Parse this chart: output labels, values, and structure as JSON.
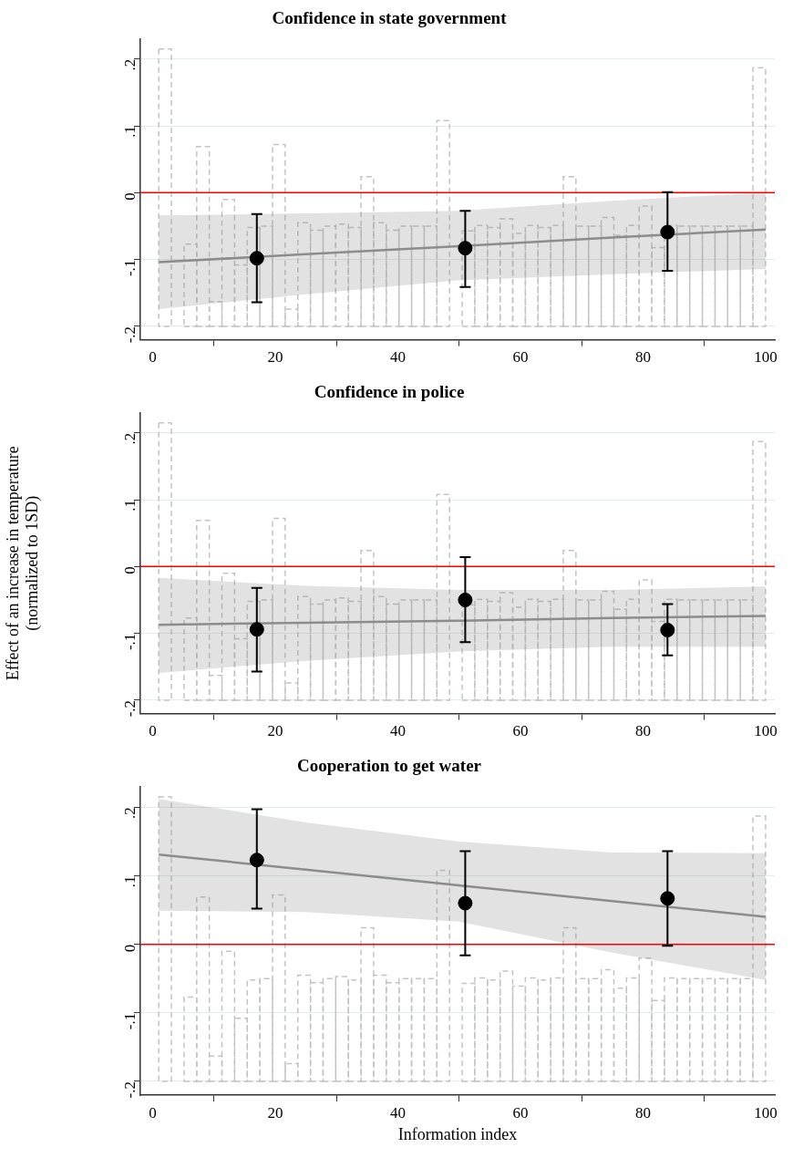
{
  "chart_data": [
    {
      "type": "scatter",
      "title": "Confidence in state government",
      "xlim": [
        -2,
        101.5
      ],
      "ylim": [
        -0.22,
        0.23
      ],
      "xticks": [
        0,
        20,
        40,
        60,
        80,
        100
      ],
      "yticks": [
        {
          "value": -0.2,
          "label": "-.2"
        },
        {
          "value": -0.1,
          "label": "-.1"
        },
        {
          "value": 0,
          "label": "0"
        },
        {
          "value": 0.1,
          "label": ".1"
        },
        {
          "value": 0.2,
          "label": ".2"
        }
      ],
      "grid": "y",
      "ref_lines": [
        {
          "axis": "y",
          "value": 0,
          "color": "#ff0000"
        }
      ],
      "series": [
        {
          "type": "bar",
          "color": "#c4c4c4",
          "line_style": "dashed",
          "x": [
            2.03,
            6.16,
            8.22,
            10.28,
            12.34,
            14.41,
            16.47,
            18.53,
            20.59,
            22.66,
            24.72,
            26.78,
            28.84,
            30.91,
            32.97,
            35.03,
            37.09,
            39.16,
            41.22,
            43.28,
            45.34,
            47.41,
            51.53,
            53.59,
            55.66,
            57.72,
            59.78,
            61.84,
            63.91,
            65.97,
            68.03,
            70.09,
            72.16,
            74.22,
            76.28,
            78.34,
            80.41,
            82.47,
            84.53,
            86.59,
            88.66,
            90.72,
            92.78,
            94.84,
            96.91,
            98.97
          ],
          "base": [
            -0.2,
            -0.2,
            -0.2,
            -0.2,
            -0.2,
            -0.2,
            -0.2,
            -0.2,
            -0.2,
            -0.2,
            -0.2,
            -0.2,
            -0.2,
            -0.2,
            -0.2,
            -0.2,
            -0.2,
            -0.2,
            -0.2,
            -0.2,
            -0.2,
            -0.2,
            -0.2,
            -0.2,
            -0.2,
            -0.2,
            -0.2,
            -0.2,
            -0.2,
            -0.2,
            -0.2,
            -0.2,
            -0.2,
            -0.2,
            -0.2,
            -0.2,
            -0.2,
            -0.2,
            -0.2,
            -0.2,
            -0.2,
            -0.2,
            -0.2,
            -0.2,
            -0.2,
            -0.2
          ],
          "values": [
            0.415,
            0.123,
            0.269,
            0.037,
            0.19,
            0.092,
            0.148,
            0.15,
            0.272,
            0.026,
            0.155,
            0.144,
            0.15,
            0.153,
            0.148,
            0.224,
            0.155,
            0.144,
            0.15,
            0.15,
            0.15,
            0.308,
            0.143,
            0.151,
            0.148,
            0.161,
            0.139,
            0.151,
            0.148,
            0.151,
            0.224,
            0.15,
            0.15,
            0.163,
            0.136,
            0.151,
            0.18,
            0.118,
            0.151,
            0.15,
            0.15,
            0.15,
            0.15,
            0.15,
            0.15,
            0.387
          ]
        },
        {
          "type": "line",
          "color": "#8c8c8c",
          "marker": "none",
          "x": [
            1,
            25,
            50,
            75,
            100
          ],
          "values": [
            -0.104,
            -0.092,
            -0.08,
            -0.067,
            -0.055
          ],
          "lower": [
            -0.174,
            -0.152,
            -0.131,
            -0.122,
            -0.114
          ],
          "upper": [
            -0.034,
            -0.031,
            -0.027,
            -0.012,
            0.0
          ]
        },
        {
          "color": "#000000",
          "marker": "circle",
          "x": [
            17,
            51,
            84
          ],
          "values": [
            -0.098,
            -0.083,
            -0.059
          ],
          "errors": [
            [
              -0.164,
              -0.032
            ],
            [
              -0.141,
              -0.027
            ],
            [
              -0.117,
              0.001
            ]
          ]
        }
      ]
    },
    {
      "type": "scatter",
      "title": "Confidence in police",
      "ylabel": "Effect of an increase in temperature\n(normalized to 1SD)",
      "xlim": [
        -2,
        101.5
      ],
      "ylim": [
        -0.22,
        0.23
      ],
      "xticks": [
        0,
        20,
        40,
        60,
        80,
        100
      ],
      "yticks": [
        {
          "value": -0.2,
          "label": "-.2"
        },
        {
          "value": -0.1,
          "label": "-.1"
        },
        {
          "value": 0,
          "label": "0"
        },
        {
          "value": 0.1,
          "label": ".1"
        },
        {
          "value": 0.2,
          "label": ".2"
        }
      ],
      "grid": "y",
      "ref_lines": [
        {
          "axis": "y",
          "value": 0,
          "color": "#ff0000"
        }
      ],
      "series": [
        {
          "type": "bar",
          "color": "#c4c4c4",
          "line_style": "dashed",
          "x": [
            2.03,
            6.16,
            8.22,
            10.28,
            12.34,
            14.41,
            16.47,
            18.53,
            20.59,
            22.66,
            24.72,
            26.78,
            28.84,
            30.91,
            32.97,
            35.03,
            37.09,
            39.16,
            41.22,
            43.28,
            45.34,
            47.41,
            51.53,
            53.59,
            55.66,
            57.72,
            59.78,
            61.84,
            63.91,
            65.97,
            68.03,
            70.09,
            72.16,
            74.22,
            76.28,
            78.34,
            80.41,
            82.47,
            84.53,
            86.59,
            88.66,
            90.72,
            92.78,
            94.84,
            96.91,
            98.97
          ],
          "base": [
            -0.2,
            -0.2,
            -0.2,
            -0.2,
            -0.2,
            -0.2,
            -0.2,
            -0.2,
            -0.2,
            -0.2,
            -0.2,
            -0.2,
            -0.2,
            -0.2,
            -0.2,
            -0.2,
            -0.2,
            -0.2,
            -0.2,
            -0.2,
            -0.2,
            -0.2,
            -0.2,
            -0.2,
            -0.2,
            -0.2,
            -0.2,
            -0.2,
            -0.2,
            -0.2,
            -0.2,
            -0.2,
            -0.2,
            -0.2,
            -0.2,
            -0.2,
            -0.2,
            -0.2,
            -0.2,
            -0.2,
            -0.2,
            -0.2,
            -0.2,
            -0.2,
            -0.2,
            -0.2
          ],
          "values": [
            0.415,
            0.123,
            0.269,
            0.037,
            0.19,
            0.092,
            0.148,
            0.15,
            0.272,
            0.026,
            0.155,
            0.144,
            0.15,
            0.153,
            0.148,
            0.224,
            0.155,
            0.144,
            0.15,
            0.15,
            0.15,
            0.308,
            0.143,
            0.151,
            0.148,
            0.161,
            0.139,
            0.151,
            0.148,
            0.151,
            0.224,
            0.15,
            0.15,
            0.163,
            0.136,
            0.151,
            0.18,
            0.118,
            0.151,
            0.15,
            0.15,
            0.15,
            0.15,
            0.15,
            0.15,
            0.387
          ]
        },
        {
          "type": "line",
          "color": "#8c8c8c",
          "marker": "none",
          "x": [
            1,
            25,
            50,
            75,
            100
          ],
          "values": [
            -0.087,
            -0.084,
            -0.081,
            -0.077,
            -0.074
          ],
          "lower": [
            -0.159,
            -0.141,
            -0.127,
            -0.12,
            -0.12
          ],
          "upper": [
            -0.017,
            -0.029,
            -0.035,
            -0.035,
            -0.03
          ]
        },
        {
          "color": "#000000",
          "marker": "circle",
          "x": [
            17,
            51,
            84
          ],
          "values": [
            -0.094,
            -0.05,
            -0.095
          ],
          "errors": [
            [
              -0.157,
              -0.032
            ],
            [
              -0.113,
              0.014
            ],
            [
              -0.133,
              -0.056
            ]
          ]
        }
      ]
    },
    {
      "type": "scatter",
      "title": "Cooperation to get water",
      "xlabel": "Information index",
      "xlim": [
        -2,
        101.5
      ],
      "ylim": [
        -0.22,
        0.23
      ],
      "xticks": [
        0,
        20,
        40,
        60,
        80,
        100
      ],
      "yticks": [
        {
          "value": -0.2,
          "label": "-.2"
        },
        {
          "value": -0.1,
          "label": "-.1"
        },
        {
          "value": 0,
          "label": "0"
        },
        {
          "value": 0.1,
          "label": ".1"
        },
        {
          "value": 0.2,
          "label": ".2"
        }
      ],
      "grid": "y",
      "ref_lines": [
        {
          "axis": "y",
          "value": 0,
          "color": "#ff0000"
        }
      ],
      "series": [
        {
          "type": "bar",
          "color": "#c4c4c4",
          "line_style": "dashed",
          "x": [
            2.03,
            6.16,
            8.22,
            10.28,
            12.34,
            14.41,
            16.47,
            18.53,
            20.59,
            22.66,
            24.72,
            26.78,
            28.84,
            30.91,
            32.97,
            35.03,
            37.09,
            39.16,
            41.22,
            43.28,
            45.34,
            47.41,
            51.53,
            53.59,
            55.66,
            57.72,
            59.78,
            61.84,
            63.91,
            65.97,
            68.03,
            70.09,
            72.16,
            74.22,
            76.28,
            78.34,
            80.41,
            82.47,
            84.53,
            86.59,
            88.66,
            90.72,
            92.78,
            94.84,
            96.91,
            98.97
          ],
          "base": [
            -0.2,
            -0.2,
            -0.2,
            -0.2,
            -0.2,
            -0.2,
            -0.2,
            -0.2,
            -0.2,
            -0.2,
            -0.2,
            -0.2,
            -0.2,
            -0.2,
            -0.2,
            -0.2,
            -0.2,
            -0.2,
            -0.2,
            -0.2,
            -0.2,
            -0.2,
            -0.2,
            -0.2,
            -0.2,
            -0.2,
            -0.2,
            -0.2,
            -0.2,
            -0.2,
            -0.2,
            -0.2,
            -0.2,
            -0.2,
            -0.2,
            -0.2,
            -0.2,
            -0.2,
            -0.2,
            -0.2,
            -0.2,
            -0.2,
            -0.2,
            -0.2,
            -0.2,
            -0.2
          ],
          "values": [
            0.415,
            0.123,
            0.269,
            0.037,
            0.19,
            0.092,
            0.148,
            0.15,
            0.272,
            0.026,
            0.155,
            0.144,
            0.15,
            0.153,
            0.148,
            0.224,
            0.155,
            0.144,
            0.15,
            0.15,
            0.15,
            0.308,
            0.143,
            0.151,
            0.148,
            0.161,
            0.139,
            0.151,
            0.148,
            0.151,
            0.224,
            0.15,
            0.15,
            0.163,
            0.136,
            0.151,
            0.18,
            0.118,
            0.151,
            0.15,
            0.15,
            0.15,
            0.15,
            0.15,
            0.15,
            0.387
          ]
        },
        {
          "type": "line",
          "color": "#8c8c8c",
          "marker": "none",
          "x": [
            1,
            25,
            50,
            75,
            100
          ],
          "values": [
            0.131,
            0.109,
            0.086,
            0.063,
            0.04
          ],
          "lower": [
            0.049,
            0.047,
            0.033,
            -0.012,
            -0.052
          ],
          "upper": [
            0.212,
            0.178,
            0.15,
            0.134,
            0.133
          ]
        },
        {
          "color": "#000000",
          "marker": "circle",
          "x": [
            17,
            51,
            84
          ],
          "values": [
            0.123,
            0.06,
            0.067
          ],
          "errors": [
            [
              0.052,
              0.197
            ],
            [
              -0.016,
              0.136
            ],
            [
              -0.002,
              0.136
            ]
          ]
        }
      ]
    }
  ]
}
